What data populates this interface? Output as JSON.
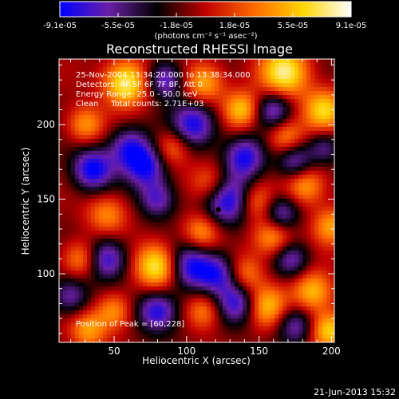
{
  "chart_data": {
    "type": "heatmap",
    "title": "Reconstructed RHESSI Image",
    "xlabel": "Heliocentric X (arcsec)",
    "ylabel": "Heliocentric Y (arcsec)",
    "xlim": [
      12,
      202
    ],
    "ylim": [
      54,
      244
    ],
    "x_ticks": [
      50,
      100,
      150,
      200
    ],
    "y_ticks": [
      100,
      150,
      200
    ],
    "colorbar": {
      "range": [
        -9.1e-05,
        9.1e-05
      ],
      "tick_labels": [
        "-9.1e-05",
        "-5.5e-05",
        "-1.8e-05",
        "1.8e-05",
        "5.5e-05",
        "9.1e-05"
      ],
      "unit_label": "(photons cm⁻² s⁻¹ asec⁻²)",
      "colormap": [
        "#0000ff",
        "#6a1fa8",
        "#000000",
        "#c00000",
        "#ff6a00",
        "#ffd400",
        "#ffffff"
      ]
    },
    "annotations": [
      "25-Nov-2004 13:34:20.000 to 13:38:34.000",
      "Detectors: 4F 5F 6F 7F 8F, Att 0",
      "Energy Range: 25.0 - 50.0 keV",
      "Clean     Total counts: 2.71E+03"
    ],
    "peak_label": "Position of Peak = [60,228]",
    "peak_position": [
      60,
      228
    ],
    "marker": [
      122,
      143
    ],
    "blobs": [
      {
        "x": 58,
        "y": 228,
        "v": 1.0,
        "r": 11
      },
      {
        "x": 112,
        "y": 228,
        "v": 0.7,
        "r": 10
      },
      {
        "x": 168,
        "y": 235,
        "v": 0.95,
        "r": 12
      },
      {
        "x": 195,
        "y": 210,
        "v": 0.8,
        "r": 10
      },
      {
        "x": 138,
        "y": 210,
        "v": 0.75,
        "r": 9
      },
      {
        "x": 168,
        "y": 192,
        "v": 0.6,
        "r": 9
      },
      {
        "x": 30,
        "y": 200,
        "v": 0.6,
        "r": 9
      },
      {
        "x": 90,
        "y": 185,
        "v": 0.55,
        "r": 9
      },
      {
        "x": 117,
        "y": 160,
        "v": 0.65,
        "r": 10
      },
      {
        "x": 148,
        "y": 148,
        "v": 0.55,
        "r": 9
      },
      {
        "x": 182,
        "y": 160,
        "v": 0.7,
        "r": 10
      },
      {
        "x": 200,
        "y": 132,
        "v": 0.6,
        "r": 9
      },
      {
        "x": 45,
        "y": 140,
        "v": 0.55,
        "r": 10
      },
      {
        "x": 110,
        "y": 128,
        "v": 0.6,
        "r": 9
      },
      {
        "x": 160,
        "y": 125,
        "v": 0.75,
        "r": 10
      },
      {
        "x": 80,
        "y": 105,
        "v": 1.0,
        "r": 11
      },
      {
        "x": 27,
        "y": 110,
        "v": 0.6,
        "r": 9
      },
      {
        "x": 140,
        "y": 100,
        "v": 0.55,
        "r": 9
      },
      {
        "x": 187,
        "y": 88,
        "v": 0.75,
        "r": 10
      },
      {
        "x": 50,
        "y": 75,
        "v": 0.6,
        "r": 9
      },
      {
        "x": 112,
        "y": 75,
        "v": 0.55,
        "r": 9
      },
      {
        "x": 155,
        "y": 78,
        "v": 0.7,
        "r": 10
      },
      {
        "x": 198,
        "y": 62,
        "v": 0.8,
        "r": 9
      },
      {
        "x": 32,
        "y": 62,
        "v": 0.6,
        "r": 9
      },
      {
        "x": 85,
        "y": 230,
        "v": -0.75,
        "r": 9
      },
      {
        "x": 60,
        "y": 185,
        "v": -0.7,
        "r": 10
      },
      {
        "x": 105,
        "y": 200,
        "v": -0.85,
        "r": 11
      },
      {
        "x": 160,
        "y": 210,
        "v": -0.7,
        "r": 9
      },
      {
        "x": 35,
        "y": 170,
        "v": -0.9,
        "r": 10
      },
      {
        "x": 72,
        "y": 172,
        "v": -0.8,
        "r": 10
      },
      {
        "x": 140,
        "y": 178,
        "v": -0.8,
        "r": 10
      },
      {
        "x": 175,
        "y": 175,
        "v": -0.7,
        "r": 9
      },
      {
        "x": 128,
        "y": 150,
        "v": -0.95,
        "r": 12
      },
      {
        "x": 80,
        "y": 150,
        "v": -0.65,
        "r": 9
      },
      {
        "x": 165,
        "y": 140,
        "v": -0.75,
        "r": 9
      },
      {
        "x": 45,
        "y": 110,
        "v": -0.8,
        "r": 10
      },
      {
        "x": 102,
        "y": 105,
        "v": -0.85,
        "r": 11
      },
      {
        "x": 122,
        "y": 100,
        "v": -0.7,
        "r": 10
      },
      {
        "x": 172,
        "y": 110,
        "v": -0.65,
        "r": 9
      },
      {
        "x": 80,
        "y": 75,
        "v": -0.85,
        "r": 10
      },
      {
        "x": 135,
        "y": 80,
        "v": -0.75,
        "r": 10
      },
      {
        "x": 175,
        "y": 65,
        "v": -0.6,
        "r": 9
      },
      {
        "x": 20,
        "y": 85,
        "v": -0.6,
        "r": 9
      },
      {
        "x": 195,
        "y": 185,
        "v": -0.5,
        "r": 8
      }
    ]
  },
  "footer": {
    "date": "21-Jun-2013 15:32"
  },
  "colors": {
    "background": "#000000",
    "text": "#ffffff"
  }
}
